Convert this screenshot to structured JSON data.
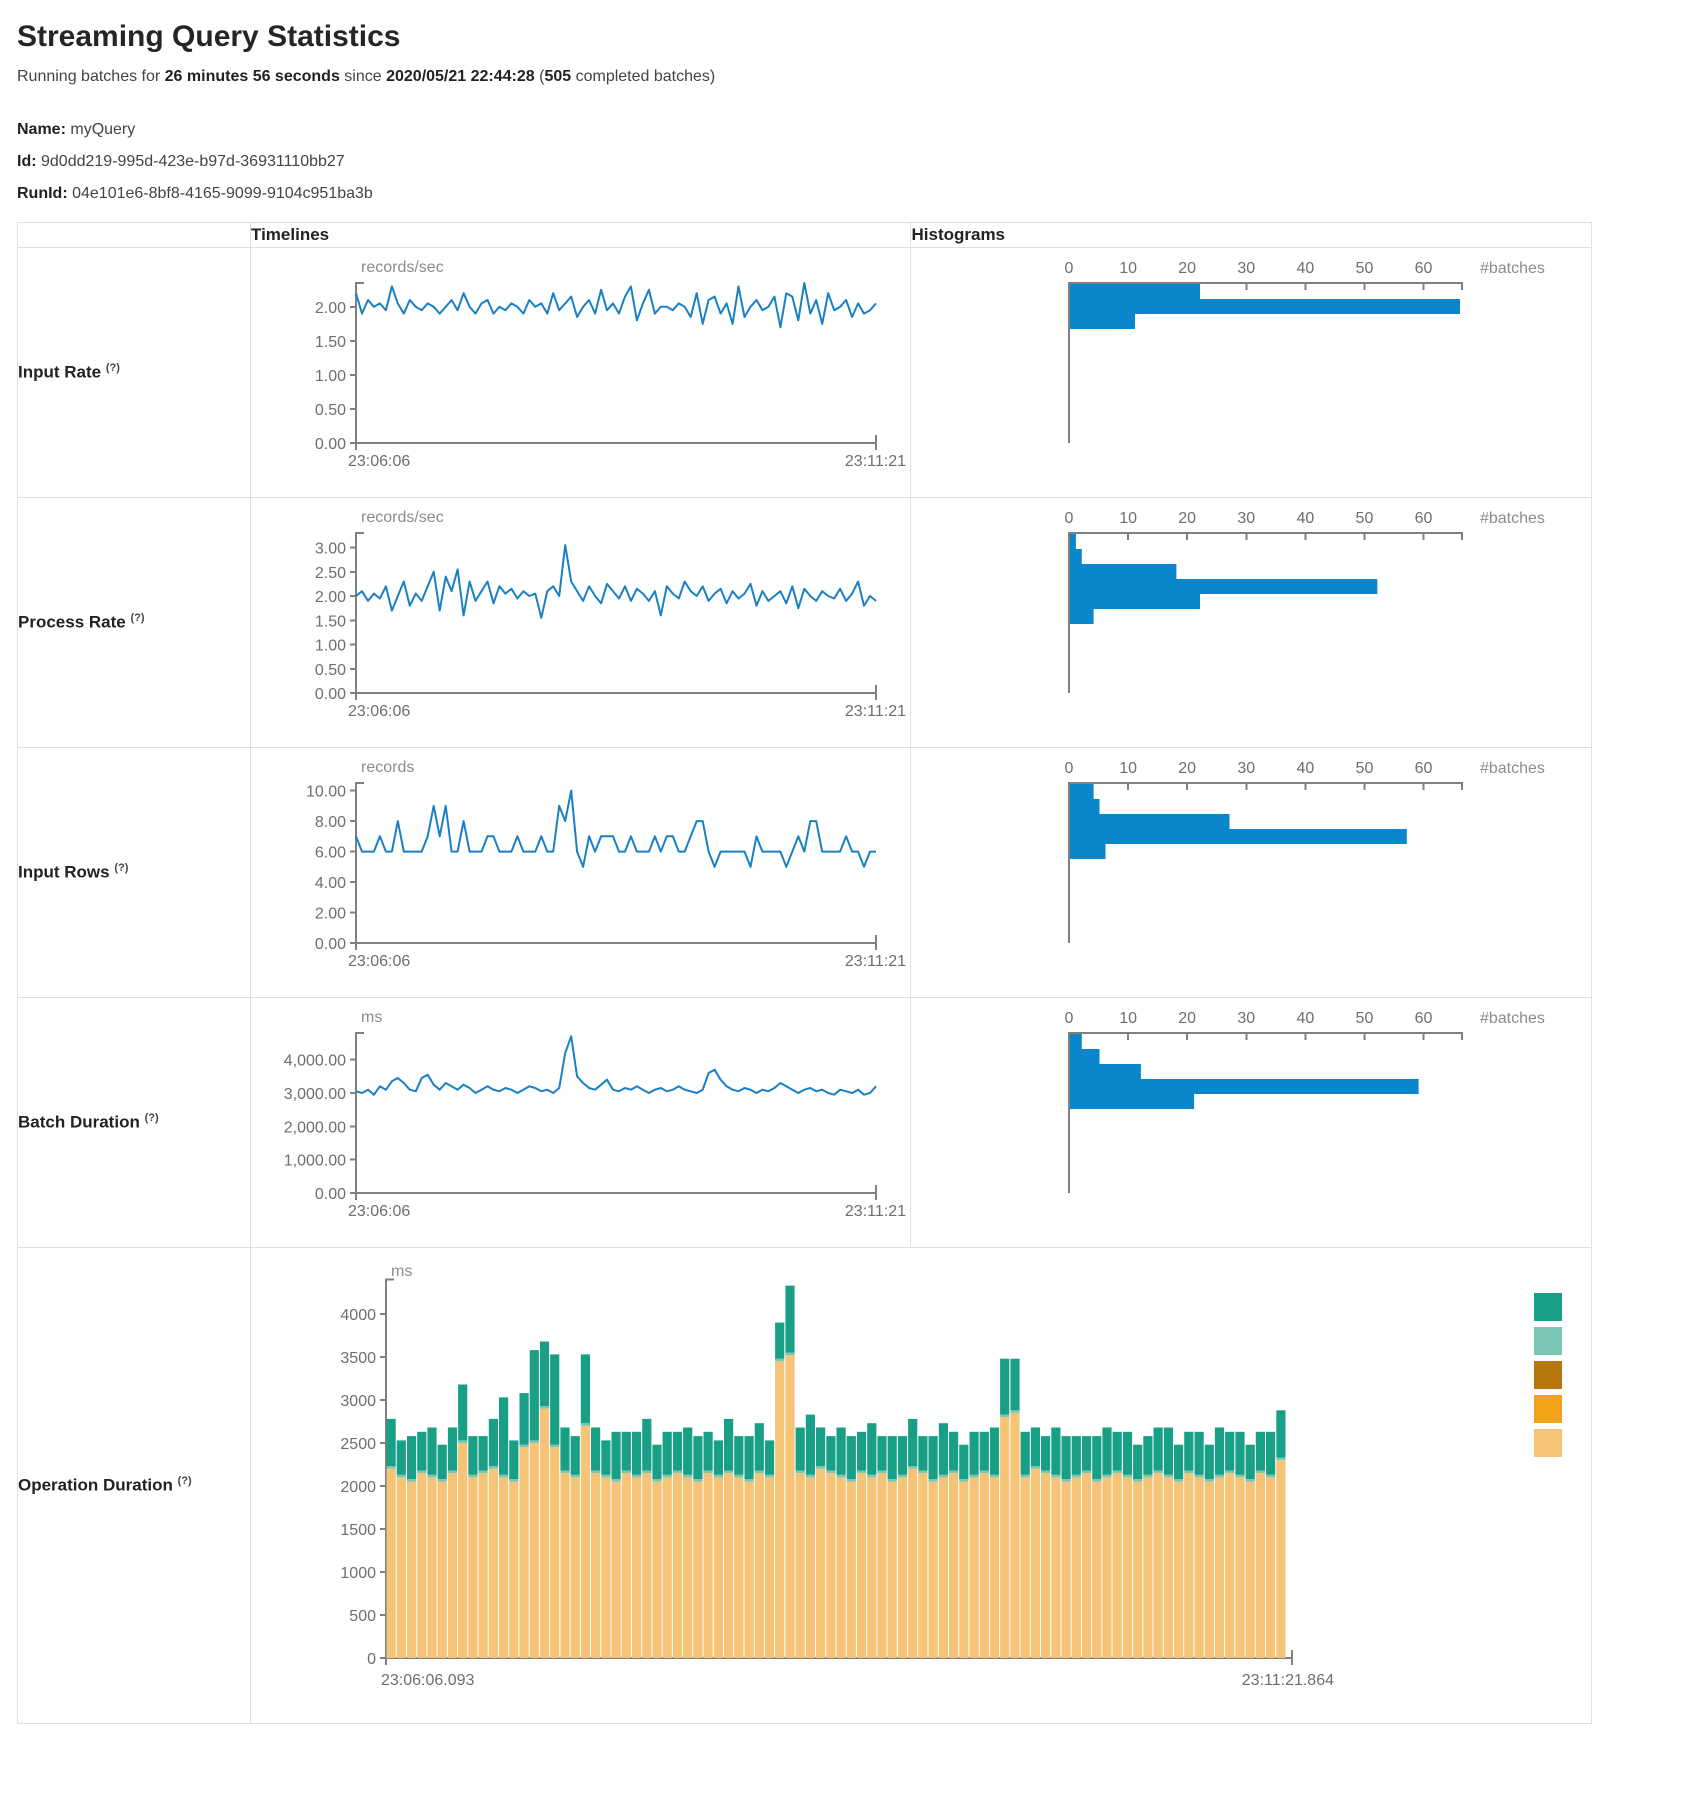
{
  "page": {
    "title": "Streaming Query Statistics",
    "subtitle_prefix": "Running batches for ",
    "duration": "26 minutes 56 seconds",
    "subtitle_mid": " since ",
    "start_time": "2020/05/21 22:44:28",
    "subtitle_open": " (",
    "completed_batches": "505",
    "subtitle_suffix": " completed batches)",
    "name_label": "Name:",
    "name_value": "myQuery",
    "id_label": "Id:",
    "id_value": "9d0dd219-995d-423e-b97d-36931110bb27",
    "runid_label": "RunId:",
    "runid_value": "04e101e6-8bf8-4165-9099-9104c951ba3b"
  },
  "table": {
    "headers": {
      "timelines": "Timelines",
      "histograms": "Histograms"
    },
    "rows": [
      {
        "label": "Input Rate",
        "help": "(?)"
      },
      {
        "label": "Process Rate",
        "help": "(?)"
      },
      {
        "label": "Input Rows",
        "help": "(?)"
      },
      {
        "label": "Batch Duration",
        "help": "(?)"
      },
      {
        "label": "Operation Duration",
        "help": "(?)"
      }
    ]
  },
  "colors": {
    "timeline_line": "#1a80c4",
    "histogram_bar": "#0b86cc",
    "axis": "#7f7f7f"
  },
  "chart_data": [
    {
      "id": "input-rate-timeline",
      "type": "line",
      "title": "records/sec",
      "x_start_label": "23:06:06",
      "x_end_label": "23:11:21",
      "ylim": [
        0,
        2.35
      ],
      "color": "#1a80c4",
      "yticks": [
        {
          "v": 2,
          "label": "2.00"
        },
        {
          "v": 1.5,
          "label": "1.50"
        },
        {
          "v": 1,
          "label": "1.00"
        },
        {
          "v": 0.5,
          "label": "0.50"
        },
        {
          "v": 0,
          "label": "0.00"
        }
      ],
      "values": [
        2.2,
        1.9,
        2.1,
        2.0,
        2.05,
        1.95,
        2.3,
        2.05,
        1.9,
        2.1,
        2.0,
        1.95,
        2.05,
        2.0,
        1.9,
        2.0,
        2.1,
        1.95,
        2.2,
        2.0,
        1.9,
        2.05,
        2.1,
        1.9,
        2.0,
        1.95,
        2.05,
        2.0,
        1.9,
        2.1,
        2.0,
        2.05,
        1.9,
        2.2,
        1.95,
        2.05,
        2.15,
        1.85,
        2.0,
        2.1,
        1.9,
        2.25,
        1.95,
        2.05,
        1.9,
        2.15,
        2.3,
        1.8,
        2.05,
        2.25,
        1.9,
        2.0,
        2.0,
        1.95,
        2.05,
        2.0,
        1.85,
        2.2,
        1.75,
        2.1,
        2.15,
        1.9,
        2.05,
        1.75,
        2.3,
        1.85,
        2.0,
        2.1,
        1.95,
        2.0,
        2.15,
        1.7,
        2.2,
        2.15,
        1.8,
        2.35,
        1.9,
        2.1,
        1.75,
        2.2,
        1.95,
        2.0,
        2.1,
        1.85,
        2.05,
        1.9,
        1.95,
        2.05
      ]
    },
    {
      "id": "input-rate-histogram",
      "type": "bar",
      "xlabel": "#batches",
      "xticks": [
        0,
        10,
        20,
        30,
        40,
        50,
        60
      ],
      "xlim": [
        0,
        66.5
      ],
      "color": "#0b86cc",
      "values": [
        22,
        66,
        11
      ]
    },
    {
      "id": "process-rate-timeline",
      "type": "line",
      "title": "records/sec",
      "x_start_label": "23:06:06",
      "x_end_label": "23:11:21",
      "ylim": [
        0,
        3.3
      ],
      "color": "#1a80c4",
      "yticks": [
        {
          "v": 3,
          "label": "3.00"
        },
        {
          "v": 2.5,
          "label": "2.50"
        },
        {
          "v": 2,
          "label": "2.00"
        },
        {
          "v": 1.5,
          "label": "1.50"
        },
        {
          "v": 1,
          "label": "1.00"
        },
        {
          "v": 0.5,
          "label": "0.50"
        },
        {
          "v": 0,
          "label": "0.00"
        }
      ],
      "values": [
        2.0,
        2.1,
        1.9,
        2.05,
        1.95,
        2.2,
        1.7,
        2.0,
        2.3,
        1.8,
        2.05,
        1.9,
        2.2,
        2.5,
        1.7,
        2.4,
        2.1,
        2.55,
        1.6,
        2.3,
        1.9,
        2.1,
        2.3,
        1.85,
        2.2,
        2.05,
        2.15,
        1.95,
        2.1,
        2.0,
        2.05,
        1.55,
        2.1,
        2.2,
        2.0,
        3.05,
        2.3,
        2.1,
        1.9,
        2.2,
        2.0,
        1.85,
        2.25,
        2.1,
        1.95,
        2.2,
        1.9,
        2.15,
        2.05,
        1.9,
        2.1,
        1.6,
        2.2,
        2.05,
        1.95,
        2.3,
        2.1,
        2.0,
        2.2,
        1.9,
        2.05,
        2.15,
        1.85,
        2.1,
        1.95,
        2.05,
        2.25,
        1.8,
        2.1,
        1.9,
        2.0,
        2.1,
        1.85,
        2.2,
        1.75,
        2.15,
        2.0,
        1.9,
        2.1,
        2.0,
        1.95,
        2.15,
        1.9,
        2.05,
        2.3,
        1.8,
        2.0,
        1.9
      ]
    },
    {
      "id": "process-rate-histogram",
      "type": "bar",
      "xlabel": "#batches",
      "xticks": [
        0,
        10,
        20,
        30,
        40,
        50,
        60
      ],
      "xlim": [
        0,
        66.5
      ],
      "color": "#0b86cc",
      "values": [
        1,
        2,
        18,
        52,
        22,
        4
      ]
    },
    {
      "id": "input-rows-timeline",
      "type": "line",
      "title": "records",
      "x_start_label": "23:06:06",
      "x_end_label": "23:11:21",
      "ylim": [
        0,
        10.5
      ],
      "color": "#1a80c4",
      "yticks": [
        {
          "v": 10,
          "label": "10.00"
        },
        {
          "v": 8,
          "label": "8.00"
        },
        {
          "v": 6,
          "label": "6.00"
        },
        {
          "v": 4,
          "label": "4.00"
        },
        {
          "v": 2,
          "label": "2.00"
        },
        {
          "v": 0,
          "label": "0.00"
        }
      ],
      "values": [
        7,
        6,
        6,
        6,
        7,
        6,
        6,
        8,
        6,
        6,
        6,
        6,
        7,
        9,
        7,
        9,
        6,
        6,
        8,
        6,
        6,
        6,
        7,
        7,
        6,
        6,
        6,
        7,
        6,
        6,
        6,
        7,
        6,
        6,
        9,
        8,
        10,
        6,
        5,
        7,
        6,
        7,
        7,
        7,
        6,
        6,
        7,
        6,
        6,
        6,
        7,
        6,
        7,
        7,
        6,
        6,
        7,
        8,
        8,
        6,
        5,
        6,
        6,
        6,
        6,
        6,
        5,
        7,
        6,
        6,
        6,
        6,
        5,
        6,
        7,
        6,
        8,
        8,
        6,
        6,
        6,
        6,
        7,
        6,
        6,
        5,
        6,
        6
      ]
    },
    {
      "id": "input-rows-histogram",
      "type": "bar",
      "xlabel": "#batches",
      "xticks": [
        0,
        10,
        20,
        30,
        40,
        50,
        60
      ],
      "xlim": [
        0,
        66.5
      ],
      "color": "#0b86cc",
      "values": [
        4,
        5,
        27,
        57,
        6
      ]
    },
    {
      "id": "batch-duration-timeline",
      "type": "line",
      "title": "ms",
      "x_start_label": "23:06:06",
      "x_end_label": "23:11:21",
      "ylim": [
        0,
        4800
      ],
      "color": "#1a80c4",
      "yticks": [
        {
          "v": 4000,
          "label": "4,000.00"
        },
        {
          "v": 3000,
          "label": "3,000.00"
        },
        {
          "v": 2000,
          "label": "2,000.00"
        },
        {
          "v": 1000,
          "label": "1,000.00"
        },
        {
          "v": 0,
          "label": "0.00"
        }
      ],
      "values": [
        3050,
        3000,
        3100,
        2950,
        3200,
        3100,
        3350,
        3450,
        3300,
        3100,
        3050,
        3450,
        3550,
        3250,
        3100,
        3300,
        3200,
        3100,
        3250,
        3150,
        3000,
        3100,
        3200,
        3100,
        3050,
        3150,
        3100,
        3000,
        3100,
        3200,
        3150,
        3050,
        3100,
        3000,
        3150,
        4200,
        4700,
        3500,
        3300,
        3150,
        3100,
        3250,
        3400,
        3100,
        3050,
        3150,
        3100,
        3200,
        3100,
        3000,
        3100,
        3150,
        3050,
        3100,
        3200,
        3100,
        3050,
        3000,
        3100,
        3600,
        3700,
        3400,
        3200,
        3100,
        3050,
        3150,
        3100,
        3000,
        3100,
        3050,
        3150,
        3300,
        3200,
        3100,
        3000,
        3100,
        3150,
        3050,
        3100,
        3000,
        2950,
        3100,
        3050,
        3000,
        3100,
        2950,
        3000,
        3200
      ]
    },
    {
      "id": "batch-duration-histogram",
      "type": "bar",
      "xlabel": "#batches",
      "xticks": [
        0,
        10,
        20,
        30,
        40,
        50,
        60
      ],
      "xlim": [
        0,
        66.5
      ],
      "color": "#0b86cc",
      "values": [
        2,
        5,
        12,
        59,
        21
      ]
    },
    {
      "id": "operation-duration",
      "type": "stacked-bar",
      "title": "ms",
      "x_start_label": "23:06:06.093",
      "x_end_label": "23:11:21.864",
      "ylim": [
        0,
        4400
      ],
      "yticks": [
        {
          "v": 4000,
          "label": "4000"
        },
        {
          "v": 3500,
          "label": "3500"
        },
        {
          "v": 3000,
          "label": "3000"
        },
        {
          "v": 2500,
          "label": "2500"
        },
        {
          "v": 2000,
          "label": "2000"
        },
        {
          "v": 1500,
          "label": "1500"
        },
        {
          "v": 1000,
          "label": "1000"
        },
        {
          "v": 500,
          "label": "500"
        },
        {
          "v": 0,
          "label": "0"
        }
      ],
      "legend_colors": [
        "#199f85",
        "#79c7b4",
        "#b8770e",
        "#f5a21b",
        "#f6c476"
      ],
      "series": [
        {
          "name": "bottom-tan",
          "color": "#f6c476",
          "values": [
            2200,
            2100,
            2050,
            2150,
            2100,
            2050,
            2150,
            2500,
            2100,
            2150,
            2200,
            2100,
            2050,
            2450,
            2500,
            2900,
            2450,
            2150,
            2100,
            2700,
            2150,
            2100,
            2050,
            2150,
            2100,
            2150,
            2050,
            2100,
            2150,
            2100,
            2050,
            2150,
            2100,
            2150,
            2100,
            2050,
            2150,
            2100,
            3450,
            3520,
            2150,
            2100,
            2200,
            2150,
            2100,
            2050,
            2150,
            2100,
            2150,
            2050,
            2100,
            2200,
            2150,
            2050,
            2100,
            2150,
            2050,
            2100,
            2150,
            2100,
            2800,
            2850,
            2100,
            2200,
            2150,
            2100,
            2050,
            2100,
            2150,
            2050,
            2100,
            2150,
            2100,
            2050,
            2100,
            2150,
            2100,
            2050,
            2150,
            2100,
            2050,
            2100,
            2150,
            2100,
            2050,
            2150,
            2100,
            2300
          ]
        },
        {
          "name": "middle-light-teal",
          "color": "#79c7b4",
          "constant": 30
        },
        {
          "name": "top-teal",
          "color": "#199f85",
          "values": [
            550,
            400,
            500,
            450,
            550,
            400,
            500,
            650,
            450,
            400,
            550,
            900,
            450,
            600,
            1050,
            750,
            1050,
            500,
            450,
            800,
            500,
            400,
            550,
            450,
            500,
            600,
            400,
            500,
            450,
            550,
            500,
            450,
            400,
            600,
            450,
            500,
            550,
            400,
            420,
            780,
            500,
            700,
            450,
            400,
            550,
            500,
            450,
            600,
            400,
            500,
            450,
            550,
            400,
            500,
            600,
            450,
            400,
            500,
            450,
            550,
            650,
            600,
            500,
            450,
            400,
            550,
            500,
            450,
            400,
            500,
            550,
            450,
            500,
            400,
            450,
            500,
            550,
            400,
            450,
            500,
            400,
            550,
            450,
            500,
            400,
            450,
            500,
            550
          ]
        }
      ]
    }
  ]
}
